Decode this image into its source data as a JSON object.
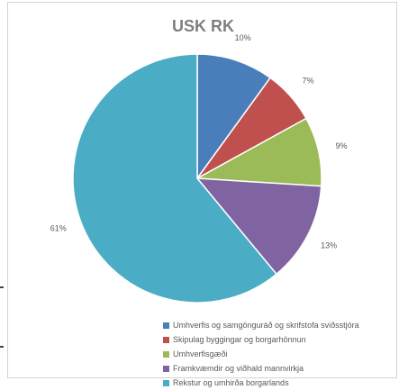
{
  "chart_data": {
    "type": "pie",
    "title": "USK RK",
    "legend_position": "bottom-right",
    "slices": [
      {
        "name": "Umhverfis og samgönguráð og skrifstofa sviðsstjóra",
        "value": 10,
        "label": "10%",
        "color": "#4a7ebb"
      },
      {
        "name": "Skipulag byggingar og borgarhönnun",
        "value": 7,
        "label": "7%",
        "color": "#c0504d"
      },
      {
        "name": "Umhverfisgæði",
        "value": 9,
        "label": "9%",
        "color": "#9bbb59"
      },
      {
        "name": "Framkvæmdir og viðhald mannvirkja",
        "value": 13,
        "label": "13%",
        "color": "#8064a2"
      },
      {
        "name": "Rekstur og umhirða borgarlands",
        "value": 61,
        "label": "61%",
        "color": "#4bacc6"
      }
    ]
  }
}
